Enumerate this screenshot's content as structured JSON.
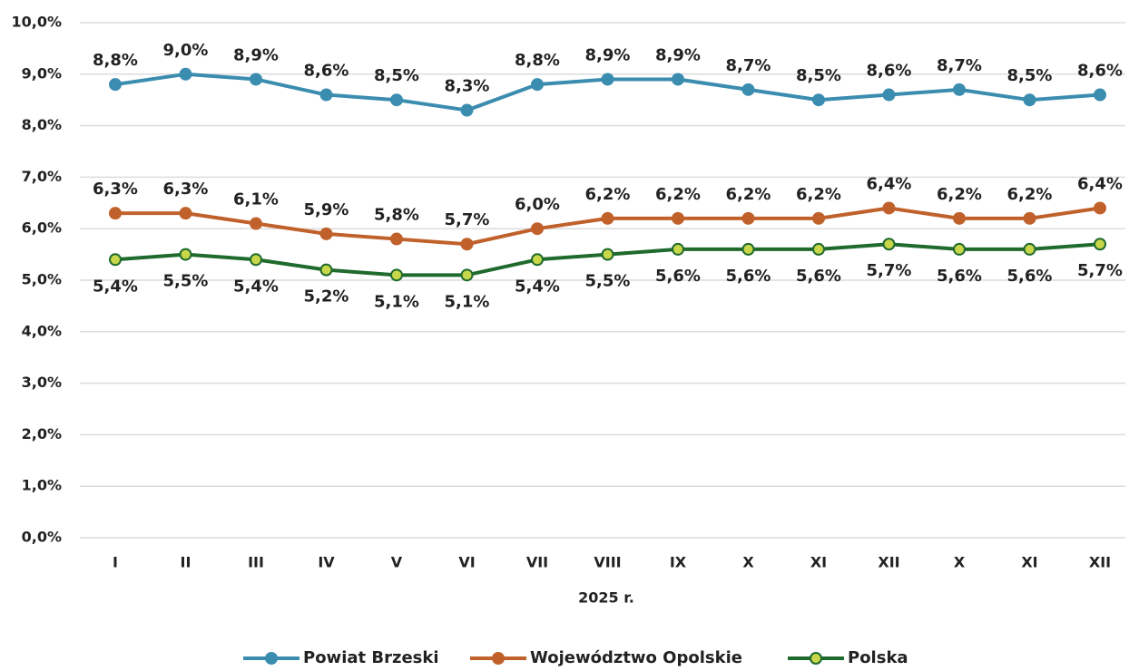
{
  "chart_data": {
    "type": "line",
    "x_label": "2025 r.",
    "categories": [
      "I",
      "II",
      "III",
      "IV",
      "V",
      "VI",
      "VII",
      "VIII",
      "IX",
      "X",
      "XI",
      "XII",
      "X",
      "XI",
      "XII"
    ],
    "series": [
      {
        "name": "Powiat Brzeski",
        "color": "#3b8db0",
        "values": [
          8.8,
          9.0,
          8.9,
          8.6,
          8.5,
          8.3,
          8.8,
          8.9,
          8.9,
          8.7,
          8.5,
          8.6,
          8.7,
          8.5,
          8.6
        ],
        "value_labels": [
          "8,8%",
          "9,0%",
          "8,9%",
          "8,6%",
          "8,5%",
          "8,3%",
          "8,8%",
          "8,9%",
          "8,9%",
          "8,7%",
          "8,5%",
          "8,6%",
          "8,7%",
          "8,5%",
          "8,6%"
        ]
      },
      {
        "name": "Województwo Opolskie",
        "color": "#c0612b",
        "values": [
          6.3,
          6.3,
          6.1,
          5.9,
          5.8,
          5.7,
          6.0,
          6.2,
          6.2,
          6.2,
          6.2,
          6.4,
          6.2,
          6.2,
          6.4
        ],
        "value_labels": [
          "6,3%",
          "6,3%",
          "6,1%",
          "5,9%",
          "5,8%",
          "5,7%",
          "6,0%",
          "6,2%",
          "6,2%",
          "6,2%",
          "6,2%",
          "6,4%",
          "6,2%",
          "6,2%",
          "6,4%"
        ]
      },
      {
        "name": "Polska",
        "color": "#1f6a2d",
        "values": [
          5.4,
          5.5,
          5.4,
          5.2,
          5.1,
          5.1,
          5.4,
          5.5,
          5.6,
          5.6,
          5.6,
          5.7,
          5.6,
          5.6,
          5.7
        ],
        "value_labels": [
          "5,4%",
          "5,5%",
          "5,4%",
          "5,2%",
          "5,1%",
          "5,1%",
          "5,4%",
          "5,5%",
          "5,6%",
          "5,6%",
          "5,6%",
          "5,7%",
          "5,6%",
          "5,6%",
          "5,7%"
        ]
      }
    ],
    "ylim": [
      0,
      10
    ],
    "yticks": [
      {
        "value": 0,
        "label": "0,0%"
      },
      {
        "value": 1,
        "label": "1,0%"
      },
      {
        "value": 2,
        "label": "2,0%"
      },
      {
        "value": 3,
        "label": "3,0%"
      },
      {
        "value": 4,
        "label": "4,0%"
      },
      {
        "value": 5,
        "label": "5,0%"
      },
      {
        "value": 6,
        "label": "6,0%"
      },
      {
        "value": 7,
        "label": "7,0%"
      },
      {
        "value": 8,
        "label": "8,0%"
      },
      {
        "value": 9,
        "label": "9,0%"
      },
      {
        "value": 10,
        "label": "10,0%"
      }
    ],
    "grid": true,
    "legend": "bottom"
  }
}
